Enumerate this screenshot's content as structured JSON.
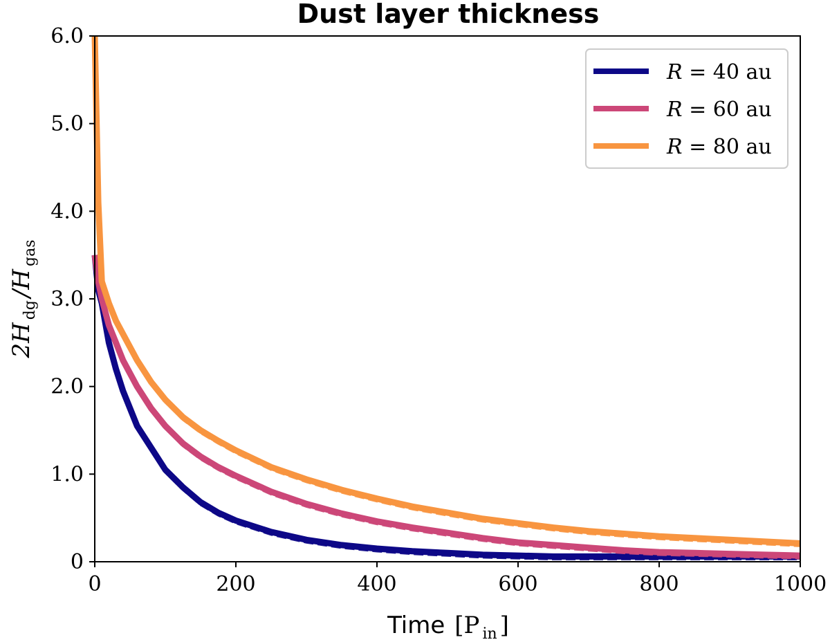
{
  "chart_data": {
    "type": "line",
    "title": "Dust layer thickness",
    "xlabel": "Time",
    "xlabel_unit": "[P",
    "xlabel_unit_sub": "in",
    "xlabel_unit_close": "]",
    "ylabel_prefix": "2H",
    "ylabel_sub1": "dg",
    "ylabel_mid": "/H",
    "ylabel_sub2": "gas",
    "xlim": [
      0,
      1000
    ],
    "ylim": [
      0,
      6
    ],
    "x_ticks": [
      0,
      200,
      400,
      600,
      800,
      1000
    ],
    "x_tick_labels": [
      "0",
      "200",
      "400",
      "600",
      "800",
      "1000"
    ],
    "y_ticks": [
      0,
      1,
      2,
      3,
      4,
      5,
      6
    ],
    "y_tick_labels": [
      "0",
      "1.0",
      "2.0",
      "3.0",
      "4.0",
      "5.0",
      "6.0"
    ],
    "grid": false,
    "legend_position": "top-right",
    "x": [
      0,
      5,
      10,
      20,
      30,
      40,
      50,
      60,
      80,
      100,
      125,
      150,
      175,
      200,
      250,
      300,
      350,
      400,
      450,
      500,
      550,
      600,
      650,
      700,
      750,
      800,
      850,
      900,
      950,
      1000
    ],
    "series": [
      {
        "name": "R = 40 au",
        "legend_label_var": "R",
        "legend_label_eq": " = 40 au",
        "color": "#0d0887",
        "values": [
          3.5,
          3.1,
          2.95,
          2.5,
          2.2,
          1.95,
          1.75,
          1.55,
          1.3,
          1.05,
          0.85,
          0.68,
          0.56,
          0.47,
          0.34,
          0.25,
          0.19,
          0.15,
          0.12,
          0.1,
          0.08,
          0.07,
          0.06,
          0.06,
          0.06,
          0.06,
          0.06,
          0.06,
          0.06,
          0.06
        ]
      },
      {
        "name": "R = 60 au",
        "legend_label_var": "R",
        "legend_label_eq": " = 60 au",
        "color": "#cc4778",
        "values": [
          3.5,
          3.2,
          3.0,
          2.7,
          2.5,
          2.3,
          2.15,
          2.0,
          1.75,
          1.55,
          1.35,
          1.2,
          1.08,
          0.98,
          0.8,
          0.66,
          0.55,
          0.46,
          0.39,
          0.33,
          0.27,
          0.22,
          0.19,
          0.16,
          0.13,
          0.11,
          0.1,
          0.09,
          0.08,
          0.07
        ]
      },
      {
        "name": "R = 80 au",
        "legend_label_var": "R",
        "legend_label_eq": " = 80 au",
        "color": "#f89540",
        "values": [
          6.0,
          4.1,
          3.2,
          2.95,
          2.75,
          2.6,
          2.45,
          2.3,
          2.05,
          1.85,
          1.65,
          1.5,
          1.38,
          1.27,
          1.08,
          0.94,
          0.82,
          0.72,
          0.63,
          0.56,
          0.49,
          0.44,
          0.39,
          0.35,
          0.32,
          0.29,
          0.27,
          0.25,
          0.23,
          0.21
        ]
      }
    ]
  }
}
